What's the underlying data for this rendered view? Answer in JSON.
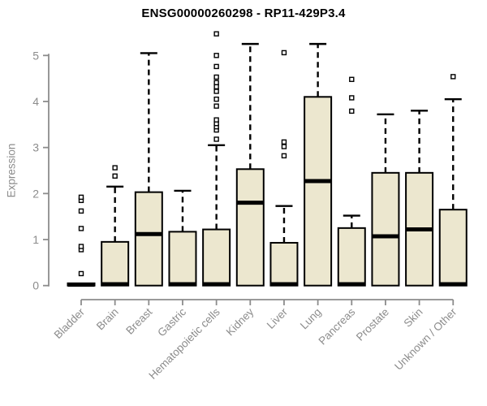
{
  "title": "ENSG00000260298 - RP11-429P3.4",
  "chart_data": {
    "type": "boxplot",
    "title": "ENSG00000260298 - RP11-429P3.4",
    "xlabel": "",
    "ylabel": "Expression",
    "ylim": [
      0,
      5
    ],
    "yticks": [
      0,
      1,
      2,
      3,
      4,
      5
    ],
    "grid": false,
    "legend": false,
    "categories": [
      "Bladder",
      "Brain",
      "Breast",
      "Gastric",
      "Hematopoietic cells",
      "Kidney",
      "Liver",
      "Lung",
      "Pancreas",
      "Prostate",
      "Skin",
      "Unknown / Other"
    ],
    "series": [
      {
        "name": "Bladder",
        "q1": 0,
        "median": 0.02,
        "q3": 0.05,
        "whisker_low": 0,
        "whisker_high": 0.05,
        "outliers": [
          0.26,
          0.78,
          0.85,
          1.24,
          1.62,
          1.85,
          1.92
        ]
      },
      {
        "name": "Brain",
        "q1": 0,
        "median": 0.03,
        "q3": 0.95,
        "whisker_low": 0,
        "whisker_high": 2.15,
        "outliers": [
          2.38,
          2.56
        ]
      },
      {
        "name": "Breast",
        "q1": 0,
        "median": 1.12,
        "q3": 2.03,
        "whisker_low": 0,
        "whisker_high": 5.05,
        "outliers": []
      },
      {
        "name": "Gastric",
        "q1": 0,
        "median": 0.03,
        "q3": 1.17,
        "whisker_low": 0,
        "whisker_high": 2.06,
        "outliers": []
      },
      {
        "name": "Hematopoietic cells",
        "q1": 0,
        "median": 0.03,
        "q3": 1.22,
        "whisker_low": 0,
        "whisker_high": 3.05,
        "outliers": [
          3.18,
          3.38,
          3.45,
          3.52,
          3.6,
          3.9,
          4.05,
          4.22,
          4.32,
          4.41,
          4.53,
          4.76,
          5.0,
          5.47
        ]
      },
      {
        "name": "Kidney",
        "q1": 0,
        "median": 1.8,
        "q3": 2.53,
        "whisker_low": 0,
        "whisker_high": 5.25,
        "outliers": []
      },
      {
        "name": "Liver",
        "q1": 0,
        "median": 0.03,
        "q3": 0.93,
        "whisker_low": 0,
        "whisker_high": 1.73,
        "outliers": [
          2.82,
          3.02,
          3.12,
          5.06
        ]
      },
      {
        "name": "Lung",
        "q1": 0,
        "median": 2.27,
        "q3": 4.1,
        "whisker_low": 0,
        "whisker_high": 5.25,
        "outliers": []
      },
      {
        "name": "Pancreas",
        "q1": 0,
        "median": 0.03,
        "q3": 1.25,
        "whisker_low": 0,
        "whisker_high": 1.52,
        "outliers": [
          3.79,
          4.08,
          4.48
        ]
      },
      {
        "name": "Prostate",
        "q1": 0,
        "median": 1.07,
        "q3": 2.45,
        "whisker_low": 0,
        "whisker_high": 3.72,
        "outliers": []
      },
      {
        "name": "Skin",
        "q1": 0,
        "median": 1.22,
        "q3": 2.45,
        "whisker_low": 0,
        "whisker_high": 3.8,
        "outliers": []
      },
      {
        "name": "Unknown / Other",
        "q1": 0,
        "median": 0.03,
        "q3": 1.65,
        "whisker_low": 0,
        "whisker_high": 4.05,
        "outliers": [
          4.54
        ]
      }
    ],
    "colors": {
      "box_fill": "#ece7cf",
      "box_border": "#000000",
      "median": "#000000",
      "whisker": "#000000",
      "outlier_fill": "#ffffff",
      "outlier_border": "#000000",
      "axis": "#8c8c8c",
      "tick_label": "#8c8c8c",
      "title": "#000000"
    }
  }
}
